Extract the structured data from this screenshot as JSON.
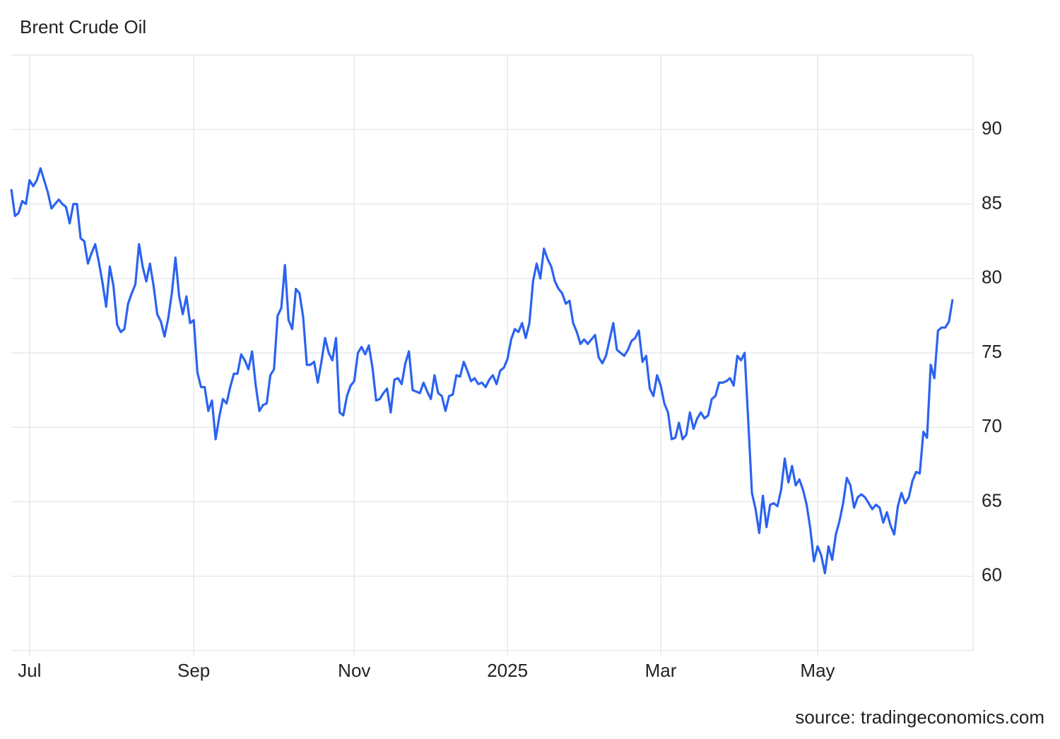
{
  "chart_data": {
    "type": "line",
    "title": "Brent Crude Oil",
    "source": "source: tradingeconomics.com",
    "categories": [
      null,
      null,
      null,
      null,
      null,
      "Jul",
      null,
      null,
      null,
      null,
      null,
      null,
      null,
      null,
      null,
      null,
      null,
      null,
      null,
      null,
      null,
      null,
      null,
      null,
      null,
      null,
      null,
      null,
      null,
      null,
      null,
      null,
      null,
      null,
      null,
      null,
      null,
      null,
      null,
      null,
      null,
      null,
      null,
      null,
      null,
      null,
      null,
      null,
      null,
      null,
      "Sep",
      null,
      null,
      null,
      null,
      null,
      null,
      null,
      null,
      null,
      null,
      null,
      null,
      null,
      null,
      null,
      null,
      null,
      null,
      null,
      null,
      null,
      null,
      null,
      null,
      null,
      null,
      null,
      null,
      null,
      null,
      null,
      null,
      null,
      null,
      null,
      null,
      null,
      null,
      null,
      null,
      null,
      null,
      null,
      "Nov",
      null,
      null,
      null,
      null,
      null,
      null,
      null,
      null,
      null,
      null,
      null,
      null,
      null,
      null,
      null,
      null,
      null,
      null,
      null,
      null,
      null,
      null,
      null,
      null,
      null,
      null,
      null,
      null,
      null,
      null,
      null,
      null,
      null,
      null,
      null,
      null,
      null,
      null,
      null,
      null,
      null,
      "2025",
      null,
      null,
      null,
      null,
      null,
      null,
      null,
      null,
      null,
      null,
      null,
      null,
      null,
      null,
      null,
      null,
      null,
      null,
      null,
      null,
      null,
      null,
      null,
      null,
      null,
      null,
      null,
      null,
      null,
      null,
      null,
      null,
      null,
      null,
      null,
      null,
      null,
      null,
      null,
      null,
      null,
      "Mar",
      null,
      null,
      null,
      null,
      null,
      null,
      null,
      null,
      null,
      null,
      null,
      null,
      null,
      null,
      null,
      null,
      null,
      null,
      null,
      null,
      null,
      null,
      null,
      null,
      null,
      null,
      null,
      null,
      null,
      null,
      null,
      null,
      null,
      null,
      null,
      null,
      null,
      null,
      null,
      null,
      null,
      null,
      "May",
      null,
      null,
      null,
      null,
      null,
      null,
      null,
      null,
      null,
      null,
      null,
      null,
      null,
      null,
      null,
      null,
      null,
      null,
      null,
      null,
      null,
      null,
      null,
      null,
      null,
      null,
      null,
      null,
      null,
      null,
      null,
      null,
      null,
      null,
      null,
      null,
      null
    ],
    "series": [
      {
        "name": "Brent Crude Oil",
        "color": "#2b63f0",
        "values": [
          86.0,
          84.2,
          84.4,
          85.2,
          85.0,
          86.6,
          86.2,
          86.6,
          87.4,
          86.6,
          85.8,
          84.7,
          85.0,
          85.3,
          85.0,
          84.8,
          83.7,
          85.0,
          85.0,
          82.7,
          82.5,
          81.0,
          81.7,
          82.3,
          81.1,
          79.7,
          78.1,
          80.8,
          79.5,
          76.9,
          76.4,
          76.6,
          78.3,
          79.0,
          79.6,
          82.3,
          80.8,
          79.8,
          81.0,
          79.5,
          77.6,
          77.1,
          76.1,
          77.3,
          79.0,
          81.4,
          78.8,
          77.6,
          78.8,
          77.0,
          77.2,
          73.7,
          72.7,
          72.7,
          71.1,
          71.8,
          69.2,
          70.7,
          71.9,
          71.6,
          72.7,
          73.6,
          73.6,
          74.9,
          74.5,
          73.9,
          75.1,
          72.8,
          71.1,
          71.5,
          71.6,
          73.5,
          73.9,
          77.5,
          78.0,
          80.9,
          77.2,
          76.6,
          79.3,
          79.0,
          77.4,
          74.2,
          74.2,
          74.4,
          73.0,
          74.4,
          76.0,
          75.0,
          74.5,
          76.0,
          71.0,
          70.8,
          72.1,
          72.8,
          73.1,
          75.0,
          75.4,
          74.9,
          75.5,
          74.0,
          71.8,
          71.9,
          72.3,
          72.6,
          71.0,
          73.2,
          73.3,
          72.9,
          74.3,
          75.1,
          72.5,
          72.4,
          72.3,
          73.0,
          72.4,
          71.9,
          73.5,
          72.3,
          72.1,
          71.1,
          72.1,
          72.2,
          73.5,
          73.4,
          74.4,
          73.8,
          73.1,
          73.3,
          72.9,
          73.0,
          72.7,
          73.2,
          73.5,
          72.9,
          73.8,
          74.0,
          74.6,
          75.9,
          76.6,
          76.4,
          77.0,
          76.0,
          77.0,
          79.8,
          81.0,
          80.0,
          82.0,
          81.3,
          80.8,
          79.8,
          79.3,
          79.0,
          78.3,
          78.5,
          77.0,
          76.4,
          75.6,
          75.9,
          75.6,
          75.9,
          76.2,
          74.7,
          74.3,
          74.8,
          75.9,
          77.0,
          75.2,
          75.0,
          74.8,
          75.2,
          75.8,
          76.0,
          76.5,
          74.4,
          74.8,
          72.6,
          72.1,
          73.5,
          72.8,
          71.6,
          71.0,
          69.2,
          69.3,
          70.3,
          69.2,
          69.5,
          71.0,
          69.9,
          70.6,
          71.0,
          70.6,
          70.8,
          71.9,
          72.1,
          73.0,
          73.0,
          73.1,
          73.3,
          72.8,
          74.8,
          74.5,
          75.0,
          70.4,
          65.6,
          64.5,
          62.9,
          65.4,
          63.3,
          64.8,
          64.9,
          64.7,
          65.8,
          67.9,
          66.3,
          67.4,
          66.1,
          66.5,
          65.8,
          64.8,
          63.2,
          61.0,
          62.0,
          61.4,
          60.2,
          62.0,
          61.1,
          62.8,
          63.7,
          64.9,
          66.6,
          66.1,
          64.6,
          65.3,
          65.5,
          65.3,
          64.9,
          64.5,
          64.8,
          64.6,
          63.6,
          64.3,
          63.4,
          62.8,
          64.7,
          65.6,
          64.9,
          65.3,
          66.4,
          67.0,
          66.9,
          69.7,
          69.3,
          74.2,
          73.3,
          76.5,
          76.7,
          76.7,
          77.1,
          78.6
        ]
      }
    ],
    "ylim": [
      55,
      95
    ],
    "yticks": [
      60,
      65,
      70,
      75,
      80,
      85,
      90
    ],
    "grid": true
  }
}
